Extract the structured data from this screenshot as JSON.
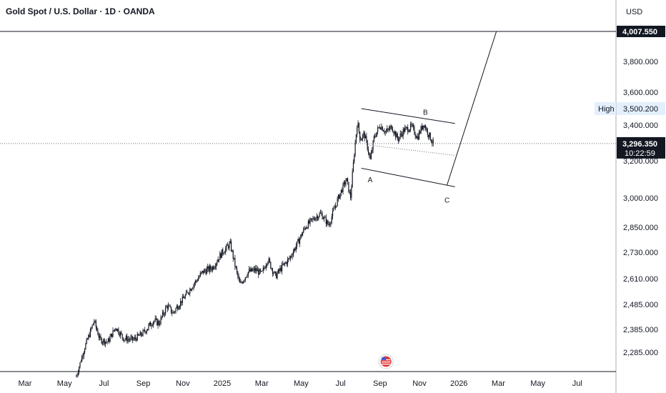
{
  "header": {
    "title": "Gold Spot / U.S. Dollar · 1D · OANDA",
    "currency": "USD"
  },
  "colors": {
    "candle": "#131722",
    "line": "#131722",
    "grid_axis": "#131722",
    "target_tag_bg": "#131722",
    "current_tag_bg": "#131722",
    "high_tag_bg": "#e3effd",
    "flag_red": "#e33e3e"
  },
  "chart_data": {
    "type": "candlestick",
    "title": "Gold Spot / U.S. Dollar · 1D · OANDA",
    "y_ticks": [
      3800,
      3600,
      3400,
      3200,
      3000,
      2850,
      2730,
      2610,
      2485,
      2385,
      2285
    ],
    "y_tick_labels": [
      "3,800.000",
      "3,600.000",
      "3,400.000",
      "3,200.000",
      "3,000.000",
      "2,850.000",
      "2,730.000",
      "2,610.000",
      "2,485.000",
      "2,385.000",
      "2,285.000"
    ],
    "x_tick_labels": [
      "Mar",
      "May",
      "Jul",
      "Sep",
      "Nov",
      "2025",
      "Mar",
      "May",
      "Jul",
      "Sep",
      "Nov",
      "2026",
      "Mar",
      "May",
      "Jul"
    ],
    "price_path": [
      {
        "m": 2.6,
        "p": 2180
      },
      {
        "m": 3.0,
        "p": 2300
      },
      {
        "m": 3.5,
        "p": 2420
      },
      {
        "m": 3.8,
        "p": 2340
      },
      {
        "m": 4.2,
        "p": 2330
      },
      {
        "m": 4.6,
        "p": 2395
      },
      {
        "m": 5.0,
        "p": 2345
      },
      {
        "m": 5.5,
        "p": 2340
      },
      {
        "m": 6.0,
        "p": 2370
      },
      {
        "m": 6.5,
        "p": 2420
      },
      {
        "m": 6.8,
        "p": 2410
      },
      {
        "m": 7.2,
        "p": 2480
      },
      {
        "m": 7.5,
        "p": 2450
      },
      {
        "m": 8.0,
        "p": 2510
      },
      {
        "m": 8.6,
        "p": 2590
      },
      {
        "m": 9.0,
        "p": 2640
      },
      {
        "m": 9.5,
        "p": 2660
      },
      {
        "m": 10.0,
        "p": 2730
      },
      {
        "m": 10.4,
        "p": 2770
      },
      {
        "m": 10.7,
        "p": 2650
      },
      {
        "m": 10.9,
        "p": 2580
      },
      {
        "m": 11.3,
        "p": 2640
      },
      {
        "m": 11.7,
        "p": 2650
      },
      {
        "m": 12.0,
        "p": 2630
      },
      {
        "m": 12.3,
        "p": 2700
      },
      {
        "m": 12.7,
        "p": 2620
      },
      {
        "m": 13.0,
        "p": 2660
      },
      {
        "m": 13.4,
        "p": 2700
      },
      {
        "m": 13.8,
        "p": 2770
      },
      {
        "m": 14.2,
        "p": 2850
      },
      {
        "m": 14.7,
        "p": 2900
      },
      {
        "m": 15.0,
        "p": 2920
      },
      {
        "m": 15.4,
        "p": 2860
      },
      {
        "m": 15.7,
        "p": 2950
      },
      {
        "m": 16.0,
        "p": 3030
      },
      {
        "m": 16.3,
        "p": 3100
      },
      {
        "m": 16.5,
        "p": 3000
      },
      {
        "m": 16.7,
        "p": 3250
      },
      {
        "m": 16.85,
        "p": 3420
      },
      {
        "m": 17.0,
        "p": 3320
      },
      {
        "m": 17.2,
        "p": 3350
      },
      {
        "m": 17.4,
        "p": 3260
      },
      {
        "m": 17.5,
        "p": 3200
      },
      {
        "m": 17.7,
        "p": 3330
      },
      {
        "m": 18.0,
        "p": 3400
      },
      {
        "m": 18.3,
        "p": 3360
      },
      {
        "m": 18.6,
        "p": 3390
      },
      {
        "m": 18.9,
        "p": 3320
      },
      {
        "m": 19.2,
        "p": 3370
      },
      {
        "m": 19.6,
        "p": 3390
      },
      {
        "m": 19.9,
        "p": 3330
      },
      {
        "m": 20.2,
        "p": 3410
      },
      {
        "m": 20.5,
        "p": 3340
      },
      {
        "m": 20.7,
        "p": 3296
      }
    ],
    "annotations": [
      {
        "label": "A",
        "m": 17.5,
        "p": 3100
      },
      {
        "label": "B",
        "m": 20.3,
        "p": 3480
      },
      {
        "label": "C",
        "m": 21.4,
        "p": 2990
      }
    ],
    "price_tags": {
      "target": "4,007.550",
      "high_label": "High",
      "high_value": "3,500.200",
      "current_price": "3,296.350",
      "countdown": "10:22:59"
    },
    "target_price": 4007.55,
    "high_price": 3500.2,
    "current_price": 3296.35
  }
}
